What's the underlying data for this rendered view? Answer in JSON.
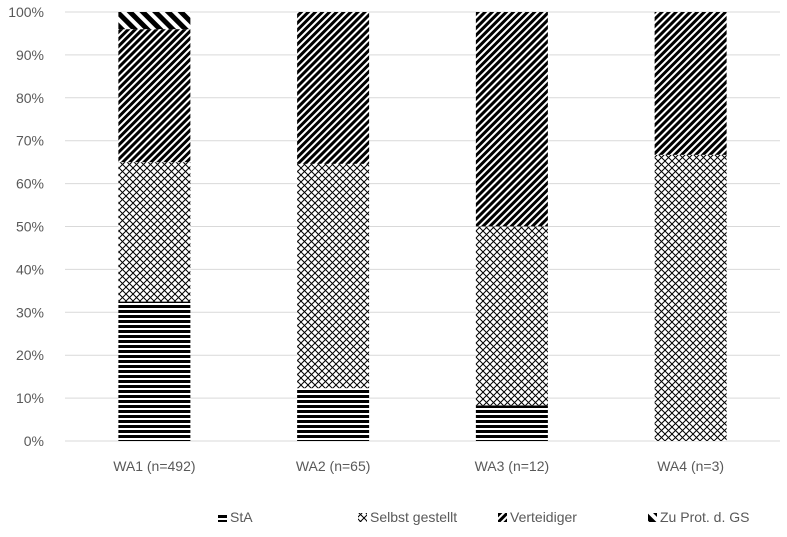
{
  "chart_data": {
    "type": "bar",
    "stacked": true,
    "percent": true,
    "categories": [
      "WA1 (n=492)",
      "WA2 (n=65)",
      "WA3 (n=12)",
      "WA4 (n=3)"
    ],
    "series": [
      {
        "name": "StA",
        "values": [
          32.5,
          12.3,
          8.3,
          0
        ],
        "pattern": "horizontal-lines"
      },
      {
        "name": "Selbst gestellt",
        "values": [
          32.5,
          52.3,
          41.7,
          66.7
        ],
        "pattern": "crosshatch"
      },
      {
        "name": "Verteidiger",
        "values": [
          31.0,
          35.4,
          50.0,
          33.3
        ],
        "pattern": "diagonal-stripes"
      },
      {
        "name": "Zu Prot. d. GS",
        "values": [
          4.0,
          0,
          0,
          0
        ],
        "pattern": "wide-diagonal"
      }
    ],
    "yticks": [
      "0%",
      "10%",
      "20%",
      "30%",
      "40%",
      "50%",
      "60%",
      "70%",
      "80%",
      "90%",
      "100%"
    ],
    "ylim": [
      0,
      100
    ],
    "grid": true,
    "legend_position": "bottom",
    "colors": {
      "ink": "#000000",
      "grid": "#d9d9d9",
      "text": "#595959"
    }
  }
}
